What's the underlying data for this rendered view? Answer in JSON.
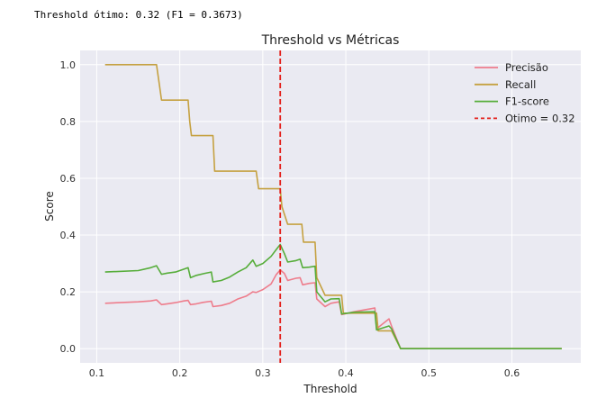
{
  "output_text": "Threshold ótimo: 0.32 (F1 = 0.3673)",
  "chart_data": {
    "type": "line",
    "title": "Threshold vs Métricas",
    "xlabel": "Threshold",
    "ylabel": "Score",
    "xlim": [
      0.08,
      0.683
    ],
    "ylim": [
      -0.05,
      1.05
    ],
    "xticks": [
      0.1,
      0.2,
      0.3,
      0.4,
      0.5,
      0.6
    ],
    "xtick_labels": [
      "0.1",
      "0.2",
      "0.3",
      "0.4",
      "0.5",
      "0.6"
    ],
    "yticks": [
      0.0,
      0.2,
      0.4,
      0.6,
      0.8,
      1.0
    ],
    "ytick_labels": [
      "0.0",
      "0.2",
      "0.4",
      "0.6",
      "0.8",
      "1.0"
    ],
    "grid": true,
    "legend_position": "top-right",
    "series": [
      {
        "name": "Precisão",
        "color": "#ee7d8c",
        "style": "solid",
        "points": [
          [
            0.11,
            0.16
          ],
          [
            0.15,
            0.165
          ],
          [
            0.165,
            0.168
          ],
          [
            0.172,
            0.172
          ],
          [
            0.178,
            0.155
          ],
          [
            0.185,
            0.158
          ],
          [
            0.195,
            0.162
          ],
          [
            0.205,
            0.168
          ],
          [
            0.21,
            0.17
          ],
          [
            0.213,
            0.155
          ],
          [
            0.22,
            0.158
          ],
          [
            0.228,
            0.163
          ],
          [
            0.238,
            0.167
          ],
          [
            0.24,
            0.148
          ],
          [
            0.25,
            0.152
          ],
          [
            0.26,
            0.16
          ],
          [
            0.27,
            0.175
          ],
          [
            0.28,
            0.185
          ],
          [
            0.288,
            0.2
          ],
          [
            0.292,
            0.198
          ],
          [
            0.3,
            0.208
          ],
          [
            0.31,
            0.228
          ],
          [
            0.316,
            0.26
          ],
          [
            0.321,
            0.277
          ],
          [
            0.326,
            0.265
          ],
          [
            0.33,
            0.24
          ],
          [
            0.34,
            0.248
          ],
          [
            0.345,
            0.25
          ],
          [
            0.348,
            0.225
          ],
          [
            0.356,
            0.23
          ],
          [
            0.363,
            0.232
          ],
          [
            0.365,
            0.175
          ],
          [
            0.375,
            0.148
          ],
          [
            0.382,
            0.16
          ],
          [
            0.392,
            0.165
          ],
          [
            0.395,
            0.12
          ],
          [
            0.41,
            0.13
          ],
          [
            0.435,
            0.143
          ],
          [
            0.437,
            0.07
          ],
          [
            0.452,
            0.105
          ],
          [
            0.455,
            0.08
          ],
          [
            0.466,
            0.0
          ],
          [
            0.66,
            0.0
          ]
        ]
      },
      {
        "name": "Recall",
        "color": "#c5a141",
        "style": "solid",
        "points": [
          [
            0.11,
            1.0
          ],
          [
            0.172,
            1.0
          ],
          [
            0.175,
            0.938
          ],
          [
            0.178,
            0.875
          ],
          [
            0.21,
            0.875
          ],
          [
            0.212,
            0.8
          ],
          [
            0.214,
            0.75
          ],
          [
            0.24,
            0.75
          ],
          [
            0.242,
            0.625
          ],
          [
            0.292,
            0.625
          ],
          [
            0.295,
            0.563
          ],
          [
            0.321,
            0.563
          ],
          [
            0.323,
            0.5
          ],
          [
            0.33,
            0.438
          ],
          [
            0.347,
            0.438
          ],
          [
            0.349,
            0.375
          ],
          [
            0.363,
            0.375
          ],
          [
            0.365,
            0.25
          ],
          [
            0.375,
            0.188
          ],
          [
            0.395,
            0.188
          ],
          [
            0.397,
            0.125
          ],
          [
            0.437,
            0.125
          ],
          [
            0.439,
            0.063
          ],
          [
            0.455,
            0.063
          ],
          [
            0.466,
            0.0
          ],
          [
            0.66,
            0.0
          ]
        ]
      },
      {
        "name": "F1-score",
        "color": "#56ad3a",
        "style": "solid",
        "points": [
          [
            0.11,
            0.27
          ],
          [
            0.15,
            0.275
          ],
          [
            0.165,
            0.285
          ],
          [
            0.172,
            0.292
          ],
          [
            0.178,
            0.262
          ],
          [
            0.185,
            0.266
          ],
          [
            0.195,
            0.27
          ],
          [
            0.205,
            0.28
          ],
          [
            0.21,
            0.285
          ],
          [
            0.213,
            0.25
          ],
          [
            0.22,
            0.258
          ],
          [
            0.23,
            0.265
          ],
          [
            0.238,
            0.27
          ],
          [
            0.24,
            0.235
          ],
          [
            0.25,
            0.24
          ],
          [
            0.26,
            0.252
          ],
          [
            0.27,
            0.27
          ],
          [
            0.28,
            0.285
          ],
          [
            0.288,
            0.312
          ],
          [
            0.292,
            0.29
          ],
          [
            0.3,
            0.3
          ],
          [
            0.31,
            0.325
          ],
          [
            0.316,
            0.348
          ],
          [
            0.321,
            0.367
          ],
          [
            0.326,
            0.335
          ],
          [
            0.33,
            0.305
          ],
          [
            0.34,
            0.31
          ],
          [
            0.345,
            0.315
          ],
          [
            0.348,
            0.285
          ],
          [
            0.356,
            0.287
          ],
          [
            0.363,
            0.29
          ],
          [
            0.365,
            0.2
          ],
          [
            0.375,
            0.165
          ],
          [
            0.382,
            0.175
          ],
          [
            0.392,
            0.176
          ],
          [
            0.395,
            0.122
          ],
          [
            0.41,
            0.128
          ],
          [
            0.435,
            0.13
          ],
          [
            0.437,
            0.066
          ],
          [
            0.452,
            0.08
          ],
          [
            0.455,
            0.07
          ],
          [
            0.466,
            0.0
          ],
          [
            0.66,
            0.0
          ]
        ]
      }
    ],
    "threshold_line": {
      "name": "Otimo = 0.32",
      "x": 0.321,
      "color": "#e3201c",
      "style": "dashed"
    }
  }
}
